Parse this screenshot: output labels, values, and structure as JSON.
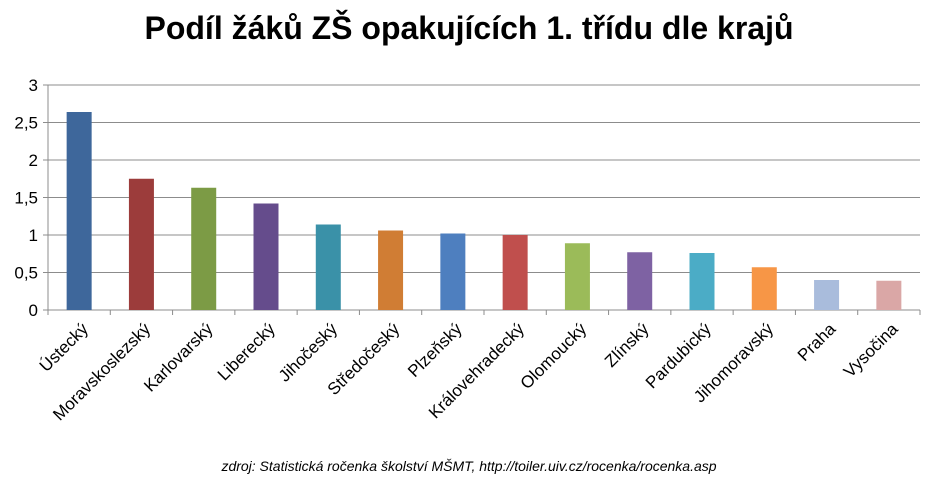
{
  "chart_data": {
    "type": "bar",
    "title": "Podíl žáků ZŠ opakujících 1. třídu dle krajů",
    "xlabel": "",
    "ylabel": "",
    "ylim": [
      0,
      3
    ],
    "yticks": [
      "0",
      "0,5",
      "1",
      "1,5",
      "2",
      "2,5",
      "3"
    ],
    "ytick_values": [
      0,
      0.5,
      1,
      1.5,
      2,
      2.5,
      3
    ],
    "grid": true,
    "legend": "none",
    "categories": [
      "Ústecký",
      "Moravskoslezský",
      "Karlovarský",
      "Liberecký",
      "Jihočeský",
      "Středočeský",
      "Plzeňský",
      "Královehradecký",
      "Olomoucký",
      "Zlínský",
      "Pardubický",
      "Jihomoravský",
      "Praha",
      "Vysočina"
    ],
    "values": [
      2.64,
      1.75,
      1.63,
      1.42,
      1.14,
      1.06,
      1.02,
      1.0,
      0.89,
      0.77,
      0.76,
      0.57,
      0.4,
      0.39
    ],
    "colors": [
      "#3E679B",
      "#9C3C3B",
      "#7C9B45",
      "#654C8C",
      "#3A91A8",
      "#D07D34",
      "#4E7FBF",
      "#C04F4D",
      "#9BBB59",
      "#7E62A3",
      "#4BACC6",
      "#F79646",
      "#A9BCDC",
      "#DAA7A6"
    ]
  },
  "source_note": "zdroj:  Statistická ročenka školství MŠMT, http://toiler.uiv.cz/rocenka/rocenka.asp"
}
